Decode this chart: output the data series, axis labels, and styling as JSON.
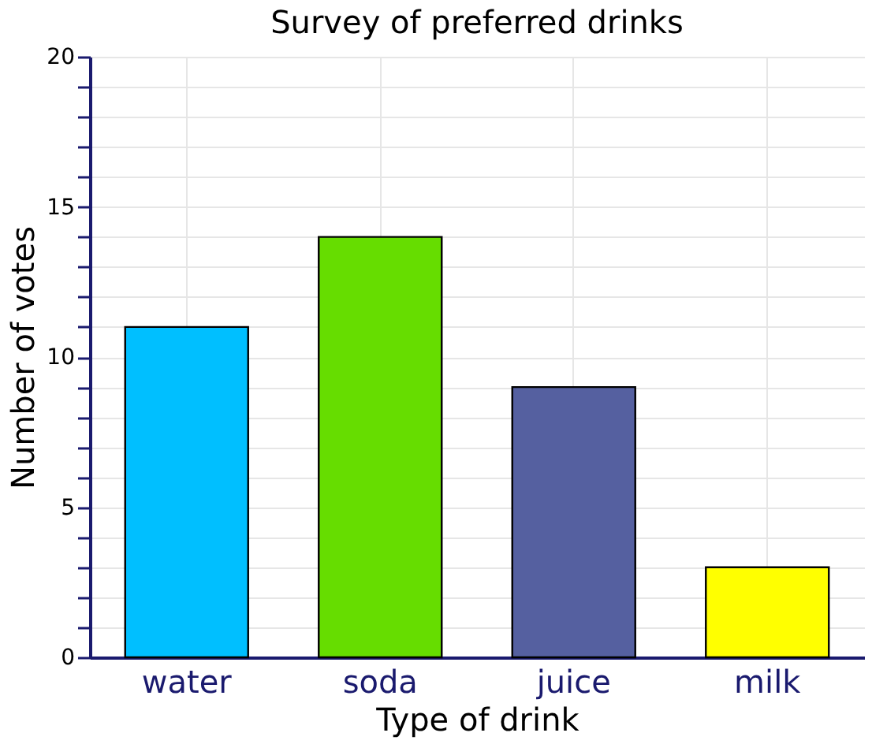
{
  "chart_data": {
    "type": "bar",
    "title": "Survey of preferred drinks",
    "xlabel": "Type of drink",
    "ylabel": "Number of votes",
    "categories": [
      "water",
      "soda",
      "juice",
      "milk"
    ],
    "values": [
      11,
      14,
      9,
      3
    ],
    "colors": [
      "#00bfff",
      "#66dd00",
      "#5560a0",
      "#ffff00"
    ],
    "ylim": [
      0,
      20
    ],
    "yticks": [
      0,
      {
        "value": 1,
        "label": null
      },
      {
        "value": 2,
        "label": null
      },
      {
        "value": 3,
        "label": null
      },
      {
        "value": 4,
        "label": null
      },
      5,
      {
        "value": 6,
        "label": null
      },
      {
        "value": 7,
        "label": null
      },
      {
        "value": 8,
        "label": null
      },
      {
        "value": 9,
        "label": null
      },
      10,
      {
        "value": 11,
        "label": null
      },
      {
        "value": 12,
        "label": null
      },
      {
        "value": 13,
        "label": null
      },
      {
        "value": 14,
        "label": null
      },
      15,
      {
        "value": 16,
        "label": null
      },
      {
        "value": 17,
        "label": null
      },
      {
        "value": 18,
        "label": null
      },
      {
        "value": 19,
        "label": null
      },
      20
    ],
    "grid": true
  }
}
